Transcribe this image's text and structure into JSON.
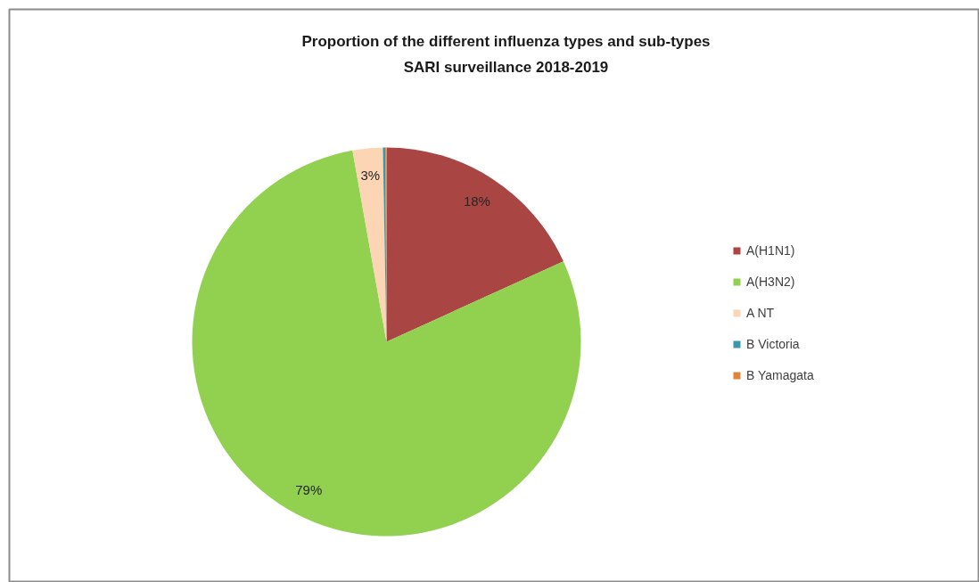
{
  "chart_data": {
    "type": "pie",
    "title": "Proportion of the different influenza types and sub-types\nSARI surveillance 2018-2019",
    "categories": [
      "A(H1N1)",
      "A(H3N2)",
      "A NT",
      "B Victoria",
      "B Yamagata"
    ],
    "values": [
      18.2,
      79.0,
      2.5,
      0.2,
      0.1
    ],
    "colors": [
      "#a94543",
      "#92d050",
      "#fcd5b4",
      "#3b96ae",
      "#e0843a"
    ],
    "value_labels": [
      "18%",
      "79%",
      "3%",
      null,
      null
    ],
    "legend": "right"
  }
}
